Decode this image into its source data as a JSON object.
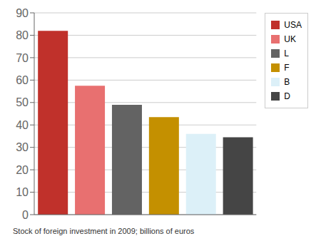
{
  "chart_data": {
    "type": "bar",
    "categories": [
      "USA",
      "UK",
      "L",
      "F",
      "B",
      "D"
    ],
    "values": [
      82,
      57.5,
      49,
      43.5,
      36,
      34.5
    ],
    "colors": [
      "#C0312B",
      "#E87070",
      "#636363",
      "#C49000",
      "#DCF0F8",
      "#454545"
    ],
    "caption": "Stock of foreign investment in 2009; billions of euros",
    "ylim": [
      0,
      90
    ],
    "yticks": [
      0,
      10,
      20,
      30,
      40,
      50,
      60,
      70,
      80,
      90
    ],
    "grid": true,
    "legend": "right",
    "tick_labels": "y"
  }
}
